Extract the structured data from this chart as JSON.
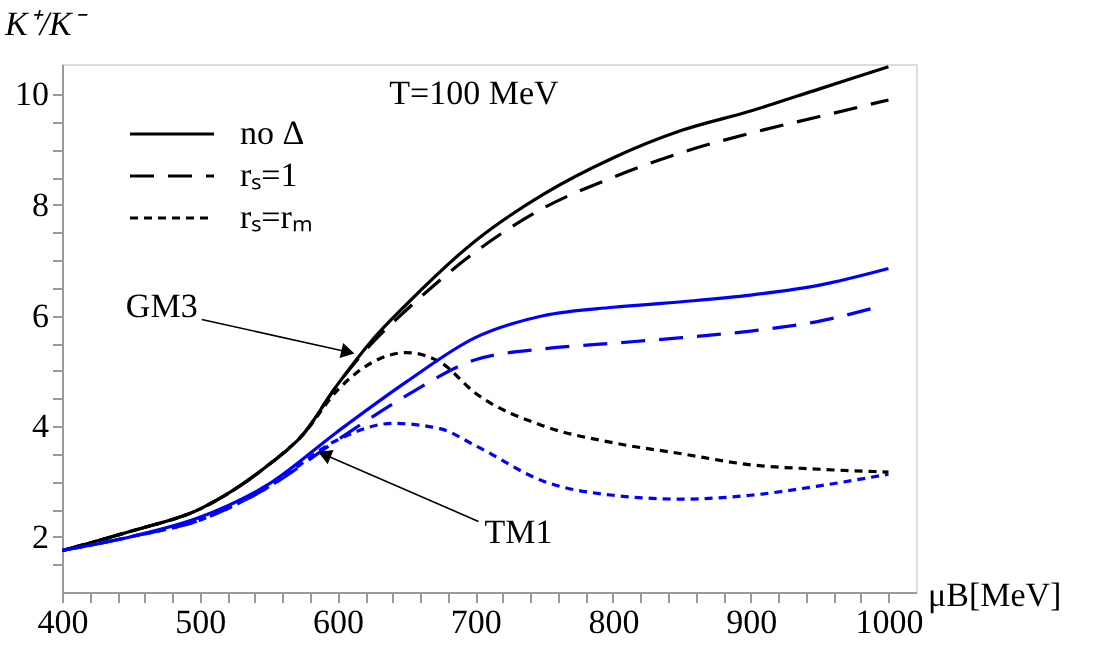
{
  "chart_data": {
    "type": "line",
    "xlabel": "μB[MeV]",
    "ylabel": "K⁺/K⁻",
    "xlim": [
      400,
      1020
    ],
    "ylim": [
      1.0,
      10.55
    ],
    "xticks": [
      400,
      {
        "value": 420,
        "label": null
      },
      {
        "value": 440,
        "label": null
      },
      {
        "value": 460,
        "label": null
      },
      {
        "value": 480,
        "label": null
      },
      500,
      {
        "value": 520,
        "label": null
      },
      {
        "value": 540,
        "label": null
      },
      {
        "value": 560,
        "label": null
      },
      {
        "value": 580,
        "label": null
      },
      600,
      {
        "value": 620,
        "label": null
      },
      {
        "value": 640,
        "label": null
      },
      {
        "value": 660,
        "label": null
      },
      {
        "value": 680,
        "label": null
      },
      700,
      {
        "value": 720,
        "label": null
      },
      {
        "value": 740,
        "label": null
      },
      {
        "value": 760,
        "label": null
      },
      {
        "value": 780,
        "label": null
      },
      800,
      {
        "value": 820,
        "label": null
      },
      {
        "value": 840,
        "label": null
      },
      {
        "value": 860,
        "label": null
      },
      {
        "value": 880,
        "label": null
      },
      900,
      {
        "value": 920,
        "label": null
      },
      {
        "value": 940,
        "label": null
      },
      {
        "value": 960,
        "label": null
      },
      {
        "value": 980,
        "label": null
      },
      1000
    ],
    "yticks": [
      {
        "value": 1.5,
        "label": null
      },
      2,
      {
        "value": 2.5,
        "label": null
      },
      {
        "value": 3,
        "label": null
      },
      {
        "value": 3.5,
        "label": null
      },
      4,
      {
        "value": 4.5,
        "label": null
      },
      {
        "value": 5,
        "label": null
      },
      {
        "value": 5.5,
        "label": null
      },
      6,
      {
        "value": 6.5,
        "label": null
      },
      {
        "value": 7,
        "label": null
      },
      {
        "value": 7.5,
        "label": null
      },
      8,
      {
        "value": 8.5,
        "label": null
      },
      {
        "value": 9,
        "label": null
      },
      {
        "value": 9.5,
        "label": null
      },
      10
    ],
    "grid": false,
    "legend": "top left",
    "series": [
      {
        "name": "no Δ",
        "color": "#000000",
        "line_style": "solid",
        "x": [
          400,
          450,
          500,
          550,
          575,
          600,
          625,
          650,
          700,
          750,
          800,
          850,
          900,
          950,
          1000
        ],
        "values": [
          1.75,
          2.1,
          2.5,
          3.3,
          3.85,
          4.75,
          5.55,
          6.2,
          7.35,
          8.2,
          8.85,
          9.35,
          9.7,
          10.1,
          10.5
        ]
      },
      {
        "name": "rₛ=1",
        "color": "#000000",
        "line_style": "dashed",
        "x": [
          400,
          450,
          500,
          550,
          575,
          600,
          625,
          650,
          700,
          750,
          800,
          850,
          900,
          950,
          1000
        ],
        "values": [
          1.75,
          2.1,
          2.5,
          3.3,
          3.85,
          4.75,
          5.5,
          6.1,
          7.15,
          7.95,
          8.5,
          8.95,
          9.3,
          9.6,
          9.9
        ]
      },
      {
        "name": "rₛ=rₘ",
        "color": "#000000",
        "line_style": "dotted",
        "x": [
          400,
          450,
          500,
          550,
          575,
          600,
          625,
          650,
          675,
          700,
          750,
          800,
          850,
          900,
          950,
          1000
        ],
        "values": [
          1.75,
          2.1,
          2.5,
          3.3,
          3.85,
          4.65,
          5.15,
          5.33,
          5.15,
          4.6,
          4.0,
          3.7,
          3.5,
          3.3,
          3.22,
          3.17
        ]
      },
      {
        "color": "#0000ff",
        "line_style": "solid",
        "x": [
          400,
          450,
          500,
          550,
          600,
          650,
          700,
          750,
          800,
          850,
          900,
          950,
          1000
        ],
        "values": [
          1.75,
          2.0,
          2.35,
          2.95,
          3.9,
          4.8,
          5.6,
          6.0,
          6.15,
          6.25,
          6.37,
          6.55,
          6.85
        ]
      },
      {
        "color": "#0000ff",
        "line_style": "dashed",
        "x": [
          400,
          450,
          500,
          550,
          600,
          650,
          700,
          750,
          800,
          850,
          900,
          950,
          990
        ],
        "values": [
          1.75,
          2.0,
          2.3,
          2.9,
          3.75,
          4.55,
          5.2,
          5.4,
          5.5,
          5.6,
          5.72,
          5.9,
          6.14
        ]
      },
      {
        "color": "#0000ff",
        "line_style": "dotted",
        "x": [
          400,
          450,
          500,
          550,
          600,
          640,
          675,
          700,
          750,
          800,
          850,
          900,
          950,
          1000
        ],
        "values": [
          1.75,
          2.0,
          2.3,
          2.9,
          3.75,
          4.05,
          3.95,
          3.65,
          3.0,
          2.75,
          2.68,
          2.75,
          2.92,
          3.13
        ]
      }
    ],
    "annotations": [
      "T=100 MeV",
      {
        "text": "GM3",
        "x": 606,
        "y": 5.35
      },
      {
        "text": "TM1",
        "x": 592,
        "y": 3.47
      }
    ]
  }
}
